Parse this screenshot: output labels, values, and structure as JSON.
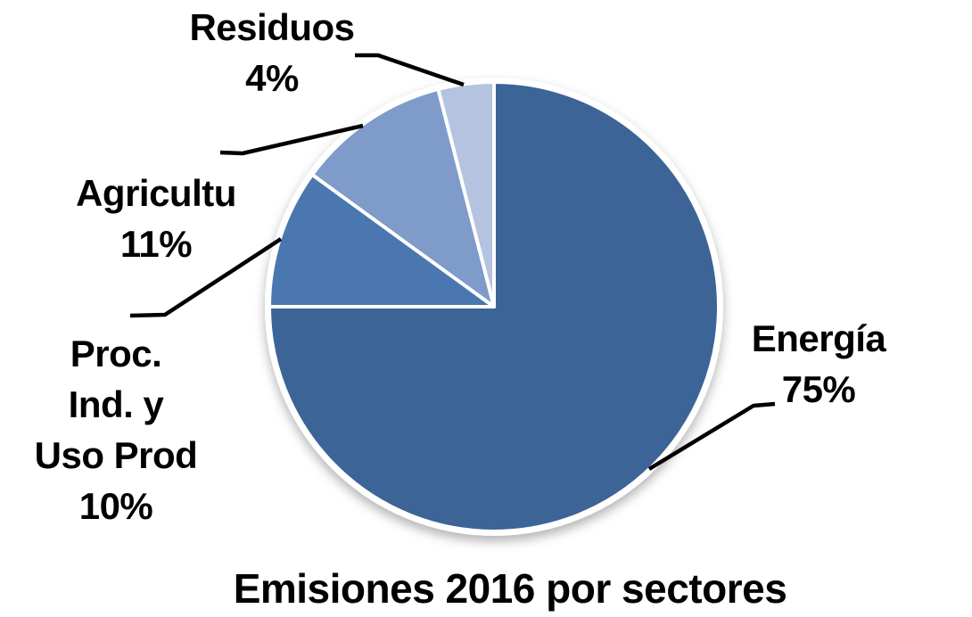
{
  "chart_data": {
    "type": "pie",
    "title": "Emisiones 2016 por sectores",
    "legend": "none",
    "direction": "clockwise",
    "start_angle_deg": 0,
    "total": 100,
    "label_style": "outside-bold-black-with-leader-lines",
    "border_color": "#ffffff",
    "leader_line_color": "#000000",
    "slices": [
      {
        "name": "Energía",
        "value": 75,
        "pct_label": "75%",
        "color": "#3C6497",
        "lines": [
          "Energía",
          "75%"
        ]
      },
      {
        "name": "Proc. Ind. y Uso Prod",
        "value": 10,
        "pct_label": "10%",
        "color": "#4B77B0",
        "lines": [
          "Proc.",
          "Ind. y",
          "Uso Prod",
          "10%"
        ]
      },
      {
        "name": "Agricultu",
        "value": 11,
        "pct_label": "11%",
        "color": "#7E9BC9",
        "lines": [
          "Agricultu",
          "11%"
        ]
      },
      {
        "name": "Residuos",
        "value": 4,
        "pct_label": "4%",
        "color": "#B4C3DF",
        "lines": [
          "Residuos",
          "4%"
        ]
      }
    ]
  }
}
